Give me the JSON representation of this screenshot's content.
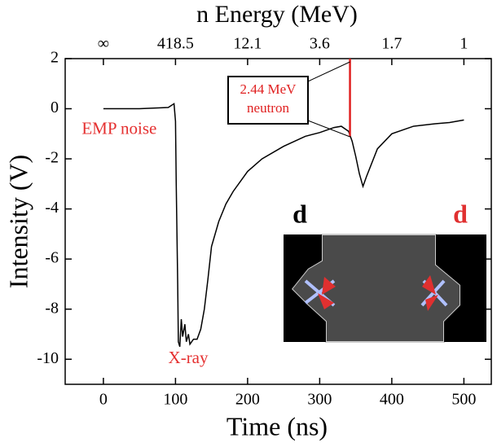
{
  "chart_data": {
    "type": "line",
    "title": "n Energy (MeV)",
    "x_label": "Time (ns)",
    "y_label": "Intensity (V)",
    "color": "#000000",
    "x": [
      0,
      50,
      90,
      98,
      100,
      101,
      103,
      104,
      106,
      108,
      110,
      113,
      115,
      118,
      120,
      125,
      130,
      135,
      140,
      145,
      150,
      160,
      170,
      180,
      200,
      220,
      250,
      280,
      300,
      320,
      330,
      340,
      345,
      350,
      355,
      360,
      365,
      380,
      400,
      430,
      460,
      480,
      500
    ],
    "values": [
      0,
      0,
      0.05,
      0.2,
      -0.5,
      -3,
      -7,
      -9.3,
      -9.5,
      -8.4,
      -9.1,
      -8.6,
      -9.3,
      -9,
      -9.4,
      -9.2,
      -9.2,
      -8.8,
      -8,
      -6.8,
      -5.5,
      -4.5,
      -3.8,
      -3.3,
      -2.5,
      -2,
      -1.5,
      -1.1,
      -0.95,
      -0.75,
      -0.7,
      -0.9,
      -1.3,
      -1.9,
      -2.6,
      -3.1,
      -2.7,
      -1.6,
      -1.0,
      -0.7,
      -0.6,
      -0.55,
      -0.45
    ],
    "xlim": [
      -53,
      538
    ],
    "ylim": [
      -11,
      2
    ],
    "xticks": [
      0,
      100,
      200,
      300,
      400,
      500
    ],
    "yticks": [
      2,
      0,
      -2,
      -4,
      -6,
      -8,
      -10
    ],
    "x2ticks": [
      {
        "value": 0,
        "label": "∞"
      },
      {
        "value": 100,
        "label": "418.5"
      },
      {
        "value": 200,
        "label": "12.1"
      },
      {
        "value": 300,
        "label": "3.6"
      },
      {
        "value": 400,
        "label": "1.7"
      },
      {
        "value": 500,
        "label": "1"
      }
    ],
    "annotations": [
      {
        "text": "EMP noise",
        "x": -30,
        "y": -0.85,
        "color": "#e53030"
      },
      {
        "text": "X-ray",
        "x": 90,
        "y": -10,
        "color": "#e53030"
      }
    ],
    "marker": {
      "lines": [
        "2.44 MeV",
        "neutron"
      ],
      "x": 342,
      "y": [
        -1.1,
        2
      ],
      "color": "#e02020"
    },
    "inset": {
      "labels": [
        "d",
        "d"
      ]
    }
  }
}
